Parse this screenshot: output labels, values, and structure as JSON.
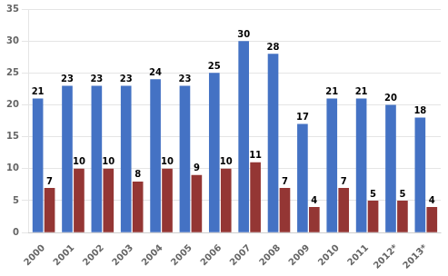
{
  "chart_data": {
    "type": "bar",
    "categories": [
      "2000",
      "2001",
      "2002",
      "2003",
      "2004",
      "2005",
      "2006",
      "2007",
      "2008",
      "2009",
      "2010",
      "2011",
      "2012*",
      "2013*"
    ],
    "series": [
      {
        "color": "#4472C4",
        "values": [
          21,
          23,
          23,
          23,
          24,
          23,
          25,
          30,
          28,
          17,
          21,
          21,
          20,
          18
        ]
      },
      {
        "color": "#943634",
        "values": [
          7,
          10,
          10,
          8,
          10,
          9,
          10,
          11,
          7,
          4,
          7,
          5,
          5,
          4
        ]
      }
    ],
    "ylim": [
      0,
      35
    ],
    "yticks": [
      0,
      5,
      10,
      15,
      20,
      25,
      30,
      35
    ],
    "grid": true,
    "data_labels": true
  }
}
